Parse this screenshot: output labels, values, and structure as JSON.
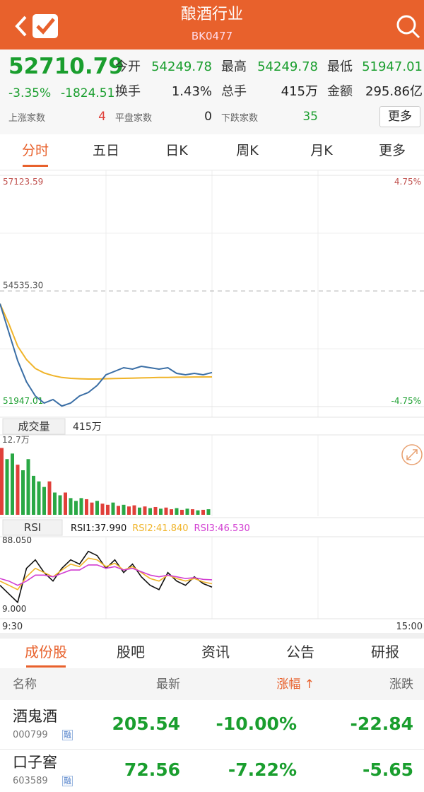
{
  "header": {
    "title": "酿酒行业",
    "code": "BK0477"
  },
  "quote": {
    "price": "52710.79",
    "change_pct": "-3.35%",
    "change": "-1824.51",
    "stats": [
      {
        "label": "今开",
        "value": "54249.78"
      },
      {
        "label": "最高",
        "value": "54249.78"
      },
      {
        "label": "最低",
        "value": "51947.01"
      },
      {
        "label": "换手",
        "value": "1.43%"
      },
      {
        "label": "总手",
        "value": "415万"
      },
      {
        "label": "金额",
        "value": "295.86亿"
      }
    ],
    "counts": [
      {
        "label": "上涨家数",
        "value": "4"
      },
      {
        "label": "平盘家数",
        "value": "0"
      },
      {
        "label": "下跌家数",
        "value": "35"
      }
    ],
    "more": "更多"
  },
  "tabs": [
    "分时",
    "五日",
    "日K",
    "周K",
    "月K",
    "更多"
  ],
  "chart_data": [
    {
      "type": "line",
      "x": [
        0,
        5,
        10,
        15,
        20,
        25,
        30,
        35,
        40,
        45,
        50,
        55,
        60,
        65,
        70,
        75,
        80,
        85,
        90,
        95,
        100,
        105,
        110,
        115,
        120
      ],
      "price": {
        "color": "#3a6ea5",
        "values": [
          54249.78,
          53609,
          52976,
          52501,
          52185,
          52026,
          52105,
          51960,
          52026,
          52185,
          52264,
          52422,
          52660,
          52739,
          52818,
          52786,
          52850,
          52818,
          52786,
          52818,
          52691,
          52660,
          52691,
          52660,
          52710.79
        ]
      },
      "average": {
        "color": "#f0b429",
        "values": [
          54249.78,
          53800,
          53300,
          53000,
          52800,
          52700,
          52640,
          52600,
          52580,
          52570,
          52565,
          52565,
          52570,
          52575,
          52580,
          52585,
          52590,
          52595,
          52600,
          52600,
          52605,
          52605,
          52610,
          52610,
          52612
        ]
      },
      "xlim": [
        0,
        240
      ],
      "ylim": [
        51947.01,
        57123.59
      ],
      "yticks": [
        {
          "value": 57123.59,
          "label": "57123.59"
        },
        {
          "value": 54535.3,
          "label": "54535.30"
        },
        {
          "value": 51947.01,
          "label": "51947.01"
        }
      ],
      "y2lim": [
        -4.75,
        4.75
      ],
      "y2ticks": [
        {
          "value": 4.75,
          "label": "4.75%"
        },
        {
          "value": -4.75,
          "label": "-4.75%"
        }
      ]
    },
    {
      "type": "bar",
      "label": "成交量",
      "total": "415万",
      "x": [
        0,
        3,
        6,
        9,
        12,
        15,
        18,
        21,
        24,
        27,
        30,
        33,
        36,
        39,
        42,
        45,
        48,
        51,
        54,
        57,
        60,
        63,
        66,
        69,
        72,
        75,
        78,
        81,
        84,
        87,
        90,
        93,
        96,
        99,
        102,
        105,
        108,
        111,
        114,
        117
      ],
      "values": [
        12,
        10,
        11,
        9,
        8,
        10,
        7,
        6,
        5,
        6,
        4,
        3.5,
        4,
        3,
        2.5,
        3,
        2.8,
        2.2,
        2.5,
        2,
        1.8,
        2.2,
        1.6,
        1.8,
        1.5,
        1.7,
        1.3,
        1.5,
        1.2,
        1.4,
        1.1,
        1.3,
        1,
        1.2,
        0.9,
        1.1,
        1,
        0.8,
        0.9,
        1
      ],
      "colors": [
        "#e0403a",
        "#2aa845",
        "#2aa845",
        "#e0403a",
        "#2aa845",
        "#2aa845",
        "#2aa845",
        "#2aa845",
        "#2aa845",
        "#e0403a",
        "#2aa845",
        "#2aa845",
        "#e0403a",
        "#2aa845",
        "#2aa845",
        "#2aa845",
        "#e0403a",
        "#e0403a",
        "#2aa845",
        "#e0403a",
        "#e0403a",
        "#2aa845",
        "#e0403a",
        "#2aa845",
        "#e0403a",
        "#e0403a",
        "#2aa845",
        "#e0403a",
        "#2aa845",
        "#e0403a",
        "#2aa845",
        "#e0403a",
        "#e0403a",
        "#2aa845",
        "#e0403a",
        "#2aa845",
        "#e0403a",
        "#2aa845",
        "#e0403a",
        "#2aa845"
      ],
      "xlim": [
        0,
        240
      ],
      "ylim": [
        0,
        12.7
      ],
      "yticks": [
        {
          "value": 12.7,
          "label": "12.7万"
        }
      ]
    },
    {
      "type": "line",
      "label": "RSI",
      "x": [
        0,
        5,
        10,
        15,
        20,
        25,
        30,
        35,
        40,
        45,
        50,
        55,
        60,
        65,
        70,
        75,
        80,
        85,
        90,
        95,
        100,
        105,
        110,
        115,
        120
      ],
      "series": [
        {
          "name": "RSI1:37.990",
          "color": "#111111",
          "values": [
            40,
            30,
            20,
            60,
            70,
            55,
            45,
            60,
            70,
            65,
            80,
            75,
            60,
            70,
            55,
            65,
            50,
            40,
            35,
            55,
            45,
            40,
            50,
            42,
            37.99
          ]
        },
        {
          "name": "RSI2:41.840",
          "color": "#f0b429",
          "values": [
            45,
            40,
            35,
            50,
            60,
            55,
            50,
            58,
            65,
            62,
            72,
            70,
            62,
            66,
            58,
            62,
            55,
            48,
            45,
            52,
            48,
            45,
            48,
            44,
            41.84
          ]
        },
        {
          "name": "RSI3:46.530",
          "color": "#d23fd2",
          "values": [
            48,
            45,
            40,
            45,
            52,
            52,
            50,
            54,
            58,
            58,
            64,
            64,
            60,
            62,
            58,
            60,
            56,
            52,
            50,
            52,
            50,
            48,
            49,
            47,
            46.53
          ]
        }
      ],
      "xlim": [
        0,
        240
      ],
      "xticks": [
        {
          "value": 0,
          "label": "9:30"
        },
        {
          "value": 240,
          "label": "15:00"
        }
      ],
      "ylim": [
        9,
        88.05
      ],
      "yticks": [
        {
          "value": 88.05,
          "label": "88.050"
        },
        {
          "value": 9,
          "label": "9.000"
        }
      ]
    }
  ],
  "sub_tabs": [
    "成份股",
    "股吧",
    "资讯",
    "公告",
    "研报"
  ],
  "table": {
    "header": [
      "名称",
      "最新",
      "涨幅 ↑",
      "涨跌"
    ],
    "rows": [
      {
        "name": "酒鬼酒",
        "code": "000799",
        "tag": "融",
        "values": [
          "205.54",
          "-10.00%",
          "-22.84"
        ]
      },
      {
        "name": "口子窖",
        "code": "603589",
        "tag": "融",
        "values": [
          "72.56",
          "-7.22%",
          "-5.65"
        ]
      }
    ]
  }
}
